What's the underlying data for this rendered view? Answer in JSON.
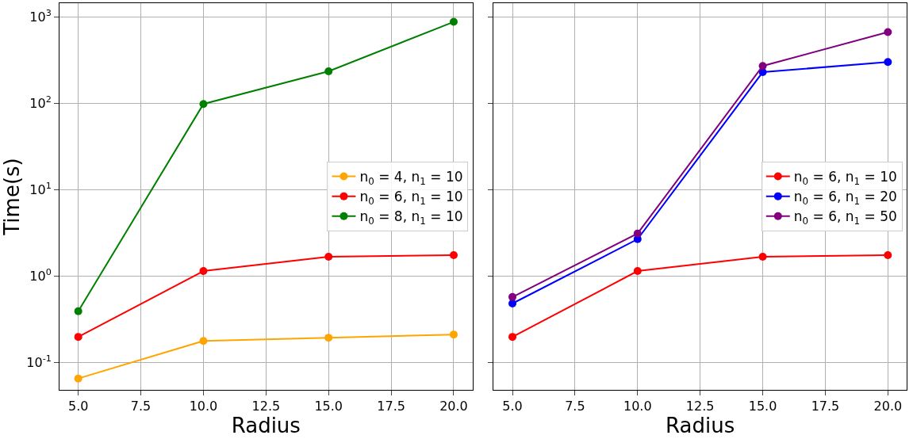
{
  "chart_data": [
    {
      "type": "line",
      "xlabel": "Radius",
      "ylabel": "Time(s)",
      "log": "y",
      "grid": true,
      "legend": "center right",
      "marker": "circle",
      "line_style": "solid",
      "x": [
        5,
        10,
        15,
        20
      ],
      "xlim": [
        4.25,
        20.75
      ],
      "xticks": [
        {
          "value": 5,
          "label": "5.0"
        },
        {
          "value": 7.5,
          "label": "7.5"
        },
        {
          "value": 10,
          "label": "10.0"
        },
        {
          "value": 12.5,
          "label": "12.5"
        },
        {
          "value": 15,
          "label": "15.0"
        },
        {
          "value": 17.5,
          "label": "17.5"
        },
        {
          "value": 20,
          "label": "20.0"
        }
      ],
      "ylim": [
        0.048,
        1440
      ],
      "yticks": [
        {
          "value": 0.1,
          "label": "10$^{-1}$"
        },
        {
          "value": 1,
          "label": "10$^{0}$"
        },
        {
          "value": 10,
          "label": "10$^{1}$"
        },
        {
          "value": 100,
          "label": "10$^{2}$"
        },
        {
          "value": 1000,
          "label": "10$^{3}$"
        }
      ],
      "series": [
        {
          "name": "n$_{0}$ = 4, n$_{1}$ = 10",
          "color": "#ffa500",
          "values": [
            0.065,
            0.177,
            0.193,
            0.21
          ]
        },
        {
          "name": "n$_{0}$ = 6, n$_{1}$ = 10",
          "color": "#ff0000",
          "values": [
            0.197,
            1.14,
            1.67,
            1.74
          ]
        },
        {
          "name": "n$_{0}$ = 8, n$_{1}$ = 10",
          "color": "#008000",
          "values": [
            0.39,
            98,
            234,
            875
          ]
        }
      ]
    },
    {
      "type": "line",
      "xlabel": "Radius",
      "log": "y",
      "grid": true,
      "legend": "center right",
      "marker": "circle",
      "line_style": "solid",
      "tick_labels": "x",
      "x": [
        5,
        10,
        15,
        20
      ],
      "xlim": [
        4.25,
        20.75
      ],
      "xticks": [
        {
          "value": 5,
          "label": "5.0"
        },
        {
          "value": 7.5,
          "label": "7.5"
        },
        {
          "value": 10,
          "label": "10.0"
        },
        {
          "value": 12.5,
          "label": "12.5"
        },
        {
          "value": 15,
          "label": "15.0"
        },
        {
          "value": 17.5,
          "label": "17.5"
        },
        {
          "value": 20,
          "label": "20.0"
        }
      ],
      "ylim": [
        0.048,
        1440
      ],
      "yticks": [
        {
          "value": 0.1,
          "label": null
        },
        {
          "value": 1,
          "label": null
        },
        {
          "value": 10,
          "label": null
        },
        {
          "value": 100,
          "label": null
        },
        {
          "value": 1000,
          "label": null
        }
      ],
      "series": [
        {
          "name": "n$_{0}$ = 6, n$_{1}$ = 10",
          "color": "#ff0000",
          "values": [
            0.197,
            1.14,
            1.67,
            1.74
          ]
        },
        {
          "name": "n$_{0}$ = 6, n$_{1}$ = 20",
          "color": "#0000ff",
          "values": [
            0.48,
            2.67,
            229,
            300
          ]
        },
        {
          "name": "n$_{0}$ = 6, n$_{1}$ = 50",
          "color": "#800080",
          "values": [
            0.57,
            3.1,
            270,
            665
          ]
        }
      ]
    }
  ]
}
